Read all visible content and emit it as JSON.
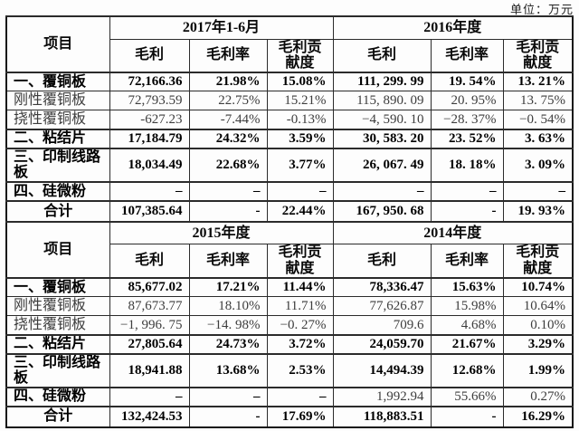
{
  "page": {
    "unit_label": "单位：万元"
  },
  "table": {
    "sections": [
      {
        "item_header": "项目",
        "period_headers": [
          "2017年1-6月",
          "2016年度"
        ],
        "column_headers": [
          "毛利",
          "毛利率",
          "毛利贡\n献度",
          "毛利",
          "毛利率",
          "毛利贡\n献度"
        ],
        "rows": [
          {
            "label": "一、覆铜板",
            "bold": true,
            "cells": [
              "72,166.36",
              "21.98%",
              "15.08%",
              "111, 299. 99",
              "19. 54%",
              "13. 21%"
            ]
          },
          {
            "label": "刚性覆铜板",
            "bold": false,
            "cells": [
              "72,793.59",
              "22.75%",
              "15.21%",
              "115, 890. 09",
              "20. 95%",
              "13. 75%"
            ]
          },
          {
            "label": "挠性覆铜板",
            "bold": false,
            "cells": [
              "-627.23",
              "-7.44%",
              "-0.13%",
              "−4, 590. 10",
              "−28. 37%",
              "−0. 54%"
            ]
          },
          {
            "label": "二、粘结片",
            "bold": true,
            "cells": [
              "17,184.79",
              "24.32%",
              "3.59%",
              "30, 583. 20",
              "23. 52%",
              "3. 63%"
            ]
          },
          {
            "label": "三、印制线路\n板",
            "bold": true,
            "tall": true,
            "cells": [
              "18,034.49",
              "22.68%",
              "3.77%",
              "26, 067. 49",
              "18. 18%",
              "3. 09%"
            ]
          },
          {
            "label": "四、硅微粉",
            "bold": true,
            "cells": [
              "–",
              "–",
              "–",
              "–",
              "–",
              "–"
            ]
          },
          {
            "label": "合计",
            "bold": true,
            "total": true,
            "cells": [
              "107,385.64",
              "-",
              "22.44%",
              "167, 950. 68",
              "-",
              "19. 93%"
            ]
          }
        ]
      },
      {
        "item_header": "项目",
        "period_headers": [
          "2015年度",
          "2014年度"
        ],
        "column_headers": [
          "毛利",
          "毛利率",
          "毛利贡\n献度",
          "毛利",
          "毛利率",
          "毛利贡\n献度"
        ],
        "rows": [
          {
            "label": "一、覆铜板",
            "bold": true,
            "cells": [
              "85,677.02",
              "17.21%",
              "11.44%",
              "78,336.47",
              "15.63%",
              "10.74%"
            ]
          },
          {
            "label": "刚性覆铜板",
            "bold": false,
            "cells": [
              "87,673.77",
              "18.10%",
              "11.71%",
              "77,626.87",
              "15.98%",
              "10.64%"
            ]
          },
          {
            "label": "挠性覆铜板",
            "bold": false,
            "cells": [
              "−1, 996. 75",
              "−14. 98%",
              "−0. 27%",
              "709.6",
              "4.68%",
              "0.10%"
            ]
          },
          {
            "label": "二、粘结片",
            "bold": true,
            "cells": [
              "27,805.64",
              "24.73%",
              "3.72%",
              "24,059.70",
              "21.67%",
              "3.29%"
            ]
          },
          {
            "label": "三、印制线路\n板",
            "bold": true,
            "tall": true,
            "cells": [
              "18,941.88",
              "13.68%",
              "2.53%",
              "14,494.39",
              "12.68%",
              "1.99%"
            ]
          },
          {
            "label": "四、硅微粉",
            "bold": true,
            "light_cells": [
              3,
              4,
              5
            ],
            "cells": [
              "–",
              "–",
              "–",
              "1,992.94",
              "55.66%",
              "0.27%"
            ]
          },
          {
            "label": "合计",
            "bold": true,
            "total": true,
            "cells": [
              "132,424.53",
              "-",
              "17.69%",
              "118,883.51",
              "-",
              "16.29%"
            ]
          }
        ]
      }
    ]
  }
}
